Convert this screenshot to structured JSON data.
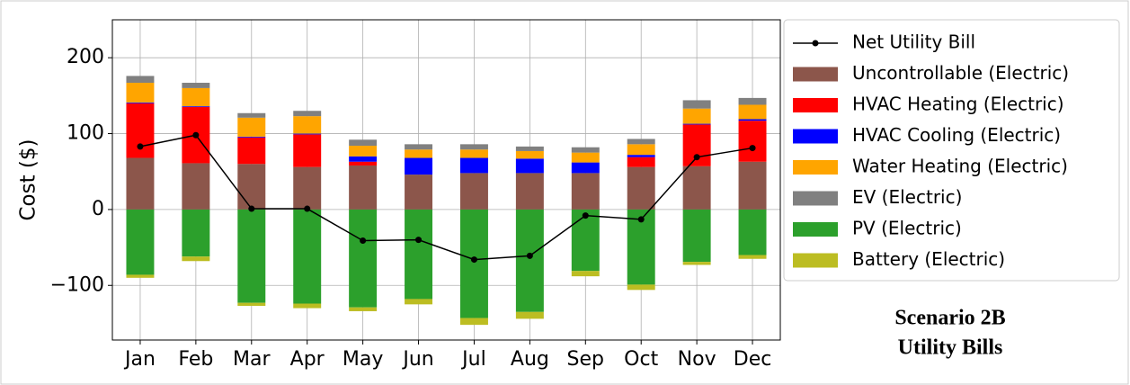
{
  "chart_data": {
    "type": "stacked_bar_line",
    "title": [
      "Scenario 2B",
      "Utility Bills"
    ],
    "y_label": "Cost ($)",
    "categories": [
      "Jan",
      "Feb",
      "Mar",
      "Apr",
      "May",
      "Jun",
      "Jul",
      "Aug",
      "Sep",
      "Oct",
      "Nov",
      "Dec"
    ],
    "ylim": [
      -172,
      250
    ],
    "yticks": [
      {
        "value": -100,
        "label": "−100"
      },
      0,
      100,
      200
    ],
    "grid": true,
    "legend": "right",
    "series": [
      {
        "name": "Net Utility Bill",
        "kind": "line",
        "color": "#000000",
        "values": [
          83,
          98,
          1,
          1,
          -41,
          -40,
          -66,
          -61,
          -8,
          -13,
          69,
          81
        ]
      },
      {
        "name": "Uncontrollable (Electric)",
        "kind": "bar",
        "color": "#8c564b",
        "values": [
          68,
          61,
          60,
          56,
          58,
          46,
          48,
          48,
          48,
          56,
          57,
          63
        ]
      },
      {
        "name": "HVAC Heating (Electric)",
        "kind": "bar",
        "color": "#ff0000",
        "values": [
          72,
          74,
          35,
          43,
          5,
          0,
          0,
          0,
          0,
          13,
          55,
          54
        ]
      },
      {
        "name": "HVAC Cooling (Electric)",
        "kind": "bar",
        "color": "#0000ff",
        "values": [
          1,
          1,
          1,
          1,
          7,
          22,
          20,
          19,
          14,
          3,
          1,
          2
        ]
      },
      {
        "name": "Water Heating (Electric)",
        "kind": "bar",
        "color": "#ffa500",
        "values": [
          26,
          24,
          25,
          23,
          14,
          11,
          11,
          10,
          13,
          14,
          20,
          19
        ]
      },
      {
        "name": "EV (Electric)",
        "kind": "bar",
        "color": "#808080",
        "values": [
          9,
          7,
          6,
          7,
          8,
          7,
          7,
          6,
          7,
          7,
          11,
          9
        ]
      },
      {
        "name": "PV (Electric)",
        "kind": "bar",
        "color": "#2ca02c",
        "values": [
          -86,
          -62,
          -123,
          -124,
          -129,
          -118,
          -143,
          -135,
          -81,
          -99,
          -69,
          -60
        ]
      },
      {
        "name": "Battery (Electric)",
        "kind": "bar",
        "color": "#bcbd22",
        "values": [
          -4,
          -6,
          -4,
          -6,
          -5,
          -7,
          -9,
          -9,
          -7,
          -7,
          -4,
          -5
        ]
      }
    ]
  }
}
